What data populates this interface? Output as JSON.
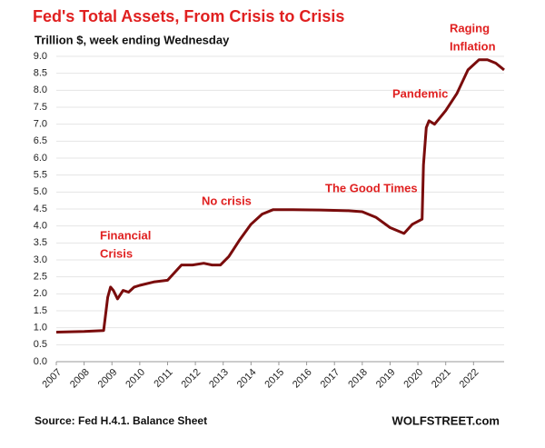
{
  "chart_data": {
    "type": "line",
    "title": "Fed's Total Assets, From Crisis to Crisis",
    "subtitle": "Trillion $, week ending Wednesday",
    "annotations": [
      [
        "Financial",
        "Crisis"
      ],
      [
        "No crisis"
      ],
      [
        "The Good Times"
      ],
      [
        "Pandemic"
      ],
      [
        "Raging",
        "Inflation"
      ]
    ],
    "source": "Source: Fed H.4.1. Balance Sheet",
    "credit": "WOLFSTREET.com",
    "color": "#7a0c0c",
    "grid": true,
    "xlim": [
      2007,
      2023.1
    ],
    "xticks": [
      2007,
      2008,
      2009,
      2010,
      2011,
      2012,
      2013,
      2014,
      2015,
      2016,
      2017,
      2018,
      2019,
      2020,
      2021,
      2022
    ],
    "ylim": [
      0,
      9
    ],
    "yticks": [
      {
        "value": 0,
        "label": "0.0"
      },
      0.5,
      {
        "value": 1,
        "label": "1.0"
      },
      1.5,
      {
        "value": 2,
        "label": "2.0"
      },
      2.5,
      {
        "value": 3,
        "label": "3.0"
      },
      3.5,
      {
        "value": 4,
        "label": "4.0"
      },
      4.5,
      {
        "value": 5,
        "label": "5.0"
      },
      5.5,
      {
        "value": 6,
        "label": "6.0"
      },
      6.5,
      {
        "value": 7,
        "label": "7.0"
      },
      7.5,
      {
        "value": 8,
        "label": "8.0"
      },
      8.5,
      {
        "value": 9,
        "label": "9.0"
      }
    ],
    "x": [
      2007.0,
      2008.0,
      2008.7,
      2008.85,
      2008.95,
      2009.05,
      2009.2,
      2009.4,
      2009.6,
      2009.8,
      2010.0,
      2010.5,
      2011.0,
      2011.5,
      2011.9,
      2012.3,
      2012.6,
      2012.9,
      2013.2,
      2013.6,
      2014.0,
      2014.4,
      2014.8,
      2015.5,
      2016.5,
      2017.5,
      2018.0,
      2018.5,
      2019.0,
      2019.5,
      2019.8,
      2020.15,
      2020.2,
      2020.3,
      2020.4,
      2020.6,
      2020.8,
      2021.0,
      2021.4,
      2021.8,
      2022.2,
      2022.5,
      2022.8,
      2023.1
    ],
    "values": [
      0.87,
      0.89,
      0.92,
      1.9,
      2.2,
      2.1,
      1.85,
      2.1,
      2.05,
      2.2,
      2.25,
      2.35,
      2.4,
      2.85,
      2.85,
      2.9,
      2.85,
      2.85,
      3.1,
      3.6,
      4.05,
      4.35,
      4.48,
      4.48,
      4.47,
      4.45,
      4.42,
      4.25,
      3.95,
      3.78,
      4.05,
      4.2,
      5.8,
      6.9,
      7.1,
      7.0,
      7.2,
      7.4,
      7.9,
      8.6,
      8.9,
      8.9,
      8.8,
      8.6
    ]
  }
}
